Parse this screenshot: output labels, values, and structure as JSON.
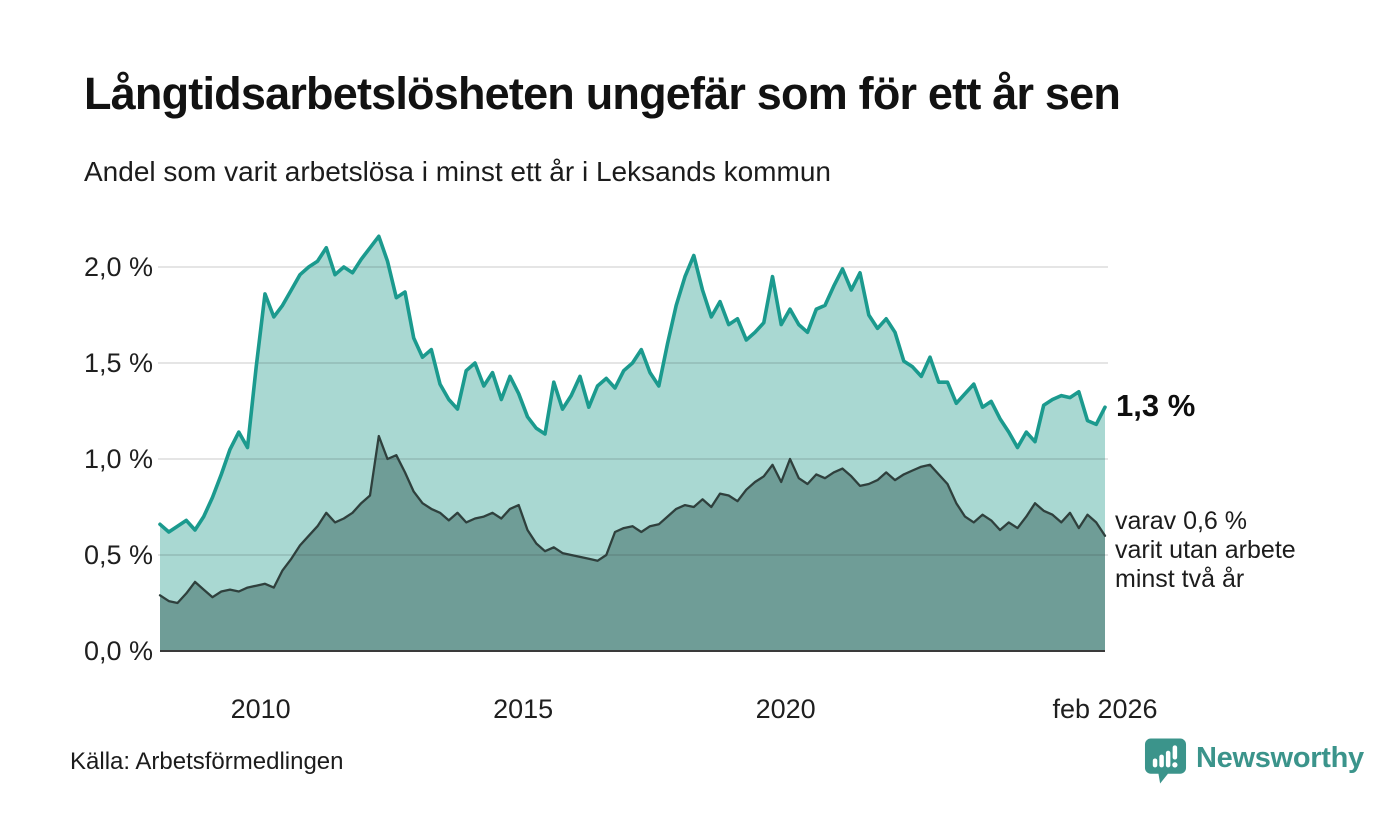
{
  "chart_data": {
    "type": "area",
    "title": "Långtidsarbetslösheten ungefär som för ett år sen",
    "subtitle": "Andel som varit arbetslösa i minst ett år i Leksands kommun",
    "x_start": 2008.083,
    "x_end": 2026.083,
    "ylim": [
      0,
      2.25
    ],
    "grid": true,
    "legend_position": "none",
    "y_ticks": [
      {
        "value": 0.0,
        "label": "0,0 %"
      },
      {
        "value": 0.5,
        "label": "0,5 %"
      },
      {
        "value": 1.0,
        "label": "1,0 %"
      },
      {
        "value": 1.5,
        "label": "1,5 %"
      },
      {
        "value": 2.0,
        "label": "2,0 %"
      }
    ],
    "x_ticks": [
      {
        "value": 2010,
        "label": "2010"
      },
      {
        "value": 2015,
        "label": "2015"
      },
      {
        "value": 2020,
        "label": "2020"
      },
      {
        "value": 2026.083,
        "label": "feb 2026"
      }
    ],
    "series": [
      {
        "name": "Andel som varit arbetslösa minst ett år",
        "line_color": "#1b9a8e",
        "fill_color": "#a9d8d2",
        "line_width": 3.6,
        "values": [
          0.66,
          0.62,
          0.65,
          0.68,
          0.63,
          0.7,
          0.8,
          0.92,
          1.05,
          1.14,
          1.06,
          1.48,
          1.86,
          1.74,
          1.8,
          1.88,
          1.96,
          2.0,
          2.03,
          2.1,
          1.96,
          2.0,
          1.97,
          2.04,
          2.1,
          2.16,
          2.03,
          1.84,
          1.87,
          1.63,
          1.53,
          1.57,
          1.39,
          1.31,
          1.26,
          1.46,
          1.5,
          1.38,
          1.45,
          1.31,
          1.43,
          1.34,
          1.22,
          1.16,
          1.13,
          1.4,
          1.26,
          1.33,
          1.43,
          1.27,
          1.38,
          1.42,
          1.37,
          1.46,
          1.5,
          1.57,
          1.45,
          1.38,
          1.6,
          1.8,
          1.95,
          2.06,
          1.88,
          1.74,
          1.82,
          1.7,
          1.73,
          1.62,
          1.66,
          1.71,
          1.95,
          1.7,
          1.78,
          1.7,
          1.66,
          1.78,
          1.8,
          1.9,
          1.99,
          1.88,
          1.97,
          1.75,
          1.68,
          1.73,
          1.66,
          1.51,
          1.48,
          1.43,
          1.53,
          1.4,
          1.4,
          1.29,
          1.34,
          1.39,
          1.27,
          1.3,
          1.21,
          1.14,
          1.06,
          1.14,
          1.09,
          1.28,
          1.31,
          1.33,
          1.32,
          1.35,
          1.2,
          1.18,
          1.27
        ]
      },
      {
        "name": "varav utan arbete minst två år",
        "line_color": "#2f403d",
        "fill_color": "#6f9d97",
        "line_width": 2.3,
        "values": [
          0.29,
          0.26,
          0.25,
          0.3,
          0.36,
          0.32,
          0.28,
          0.31,
          0.32,
          0.31,
          0.33,
          0.34,
          0.35,
          0.33,
          0.42,
          0.48,
          0.55,
          0.6,
          0.65,
          0.72,
          0.67,
          0.69,
          0.72,
          0.77,
          0.81,
          1.12,
          1.0,
          1.02,
          0.93,
          0.83,
          0.77,
          0.74,
          0.72,
          0.68,
          0.72,
          0.67,
          0.69,
          0.7,
          0.72,
          0.69,
          0.74,
          0.76,
          0.63,
          0.56,
          0.52,
          0.54,
          0.51,
          0.5,
          0.49,
          0.48,
          0.47,
          0.5,
          0.62,
          0.64,
          0.65,
          0.62,
          0.65,
          0.66,
          0.7,
          0.74,
          0.76,
          0.75,
          0.79,
          0.75,
          0.82,
          0.81,
          0.78,
          0.84,
          0.88,
          0.91,
          0.97,
          0.88,
          1.0,
          0.9,
          0.87,
          0.92,
          0.9,
          0.93,
          0.95,
          0.91,
          0.86,
          0.87,
          0.89,
          0.93,
          0.89,
          0.92,
          0.94,
          0.96,
          0.97,
          0.92,
          0.87,
          0.77,
          0.7,
          0.67,
          0.71,
          0.68,
          0.63,
          0.67,
          0.64,
          0.7,
          0.77,
          0.73,
          0.71,
          0.67,
          0.72,
          0.64,
          0.71,
          0.67,
          0.6
        ]
      }
    ],
    "annotations": [
      {
        "text": "1,3 %",
        "y": 1.27,
        "style": "bold"
      },
      {
        "text": "varav 0,6 %\nvarit utan arbete\nminst två år",
        "y": 0.6,
        "style": "regular"
      }
    ],
    "colors": {
      "grid": "#dcdcdc",
      "baseline": "#3a3a3a",
      "background": "#ffffff"
    }
  },
  "footer": {
    "source": "Källa: Arbetsförmedlingen",
    "brand": "Newsworthy",
    "brand_color": "#3b948b"
  }
}
